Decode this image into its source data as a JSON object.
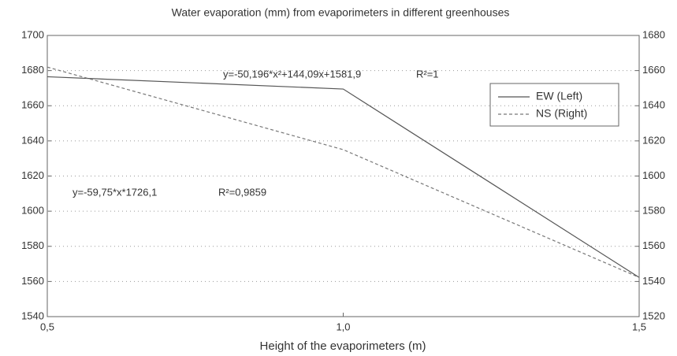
{
  "chart_data": {
    "type": "line",
    "title": "Water evaporation (mm) from evaporimeters in different greenhouses",
    "x_label": "Height of the evaporimeters (m)",
    "x": [
      0.5,
      1.0,
      1.5
    ],
    "series": [
      {
        "name": "EW (Left)",
        "color": "#555555",
        "dash": false,
        "values": [
          1676.5,
          1669.5,
          1562.3
        ]
      },
      {
        "name": "NS (Right)",
        "color": "#777777",
        "dash": true,
        "axis": "y2",
        "values": [
          1662,
          1615,
          1542.3
        ]
      }
    ],
    "xlim": [
      0.5,
      1.5
    ],
    "xticks": [
      {
        "value": 0.5,
        "label": "0,5"
      },
      {
        "value": 1.0,
        "label": "1,0"
      },
      {
        "value": 1.5,
        "label": "1,5"
      }
    ],
    "ylim": [
      1540,
      1700
    ],
    "yticks": [
      1540,
      1560,
      1580,
      1600,
      1620,
      1640,
      1660,
      1680,
      1700
    ],
    "y2lim": [
      1520,
      1680
    ],
    "y2ticks": [
      1520,
      1540,
      1560,
      1580,
      1600,
      1620,
      1640,
      1660,
      1680
    ],
    "grid": true,
    "legend": "upper right",
    "annotations": [
      {
        "text": "y=-50,196*x²+144,09x+1581,9",
        "r2": "R²=1"
      },
      {
        "text": "y=-59,75*x*1726,1",
        "r2": "R²=0,9859"
      }
    ]
  }
}
